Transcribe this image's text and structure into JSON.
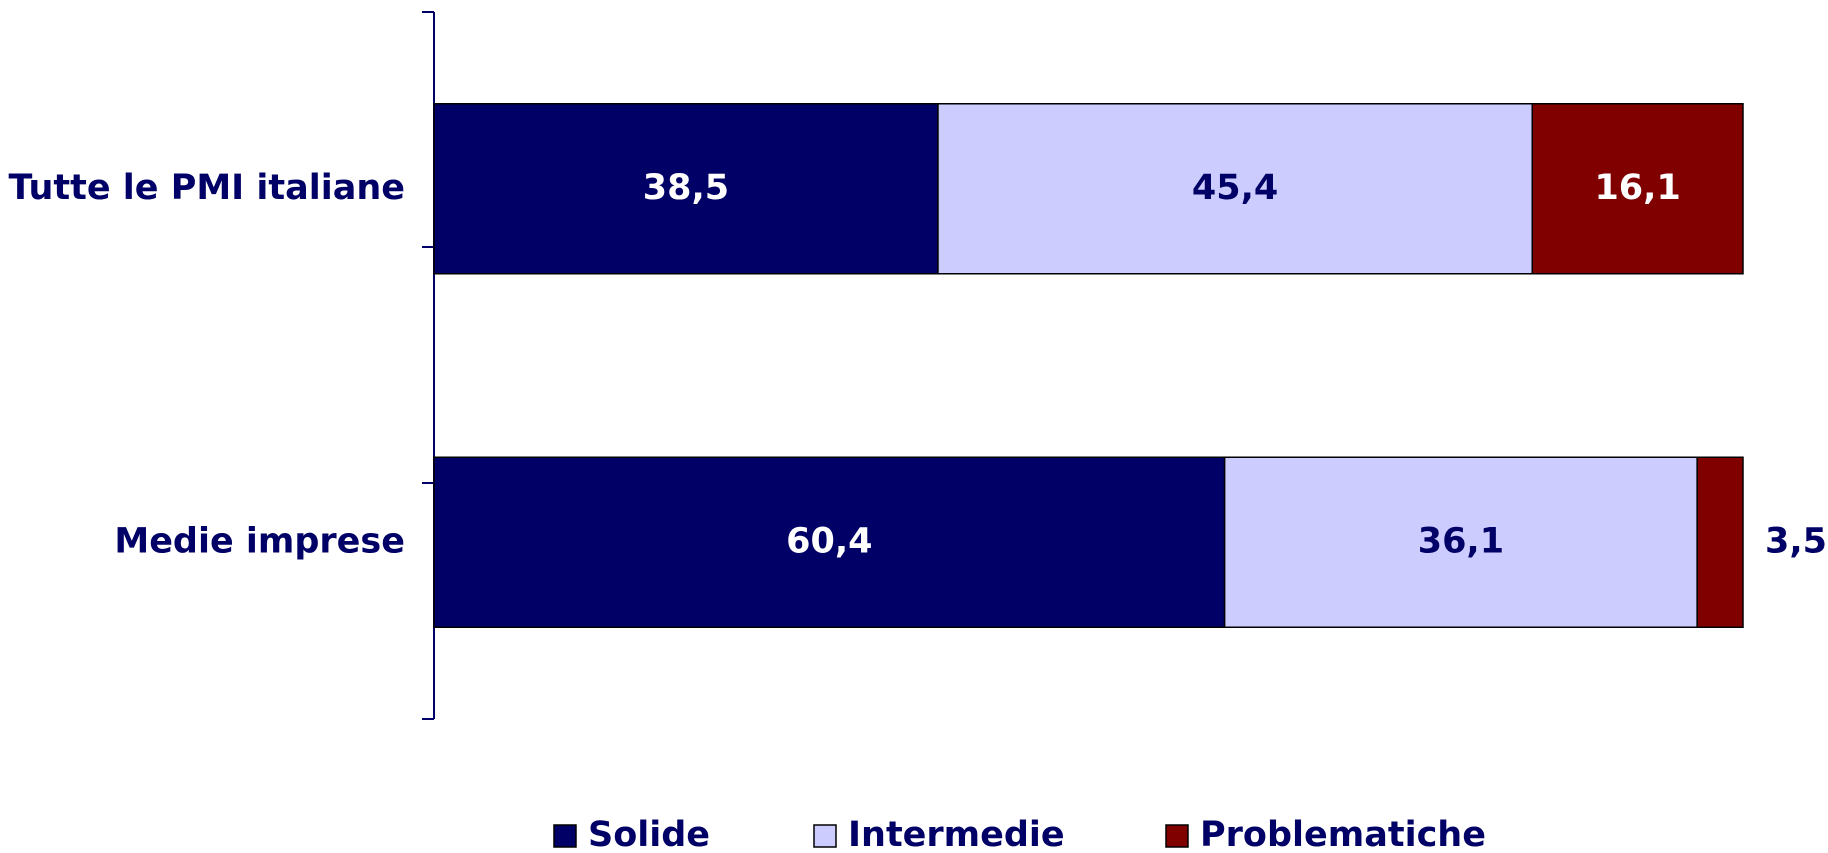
{
  "chart_data": {
    "type": "stacked_bar",
    "orientation": "horizontal",
    "categories": [
      "Tutte le PMI italiane",
      "Medie imprese"
    ],
    "series": [
      {
        "name": "Solide",
        "color": "#000066",
        "values": [
          38.5,
          60.4
        ],
        "value_labels": [
          "38,5",
          "60,4"
        ]
      },
      {
        "name": "Intermedie",
        "color": "#ccccff",
        "values": [
          45.4,
          36.1
        ],
        "value_labels": [
          "45,4",
          "36,1"
        ]
      },
      {
        "name": "Problematiche",
        "color": "#800000",
        "values": [
          16.1,
          3.5
        ],
        "value_labels": [
          "16,1",
          "3,5"
        ]
      }
    ],
    "xlim": [
      0,
      100
    ],
    "legend": "bottom"
  }
}
